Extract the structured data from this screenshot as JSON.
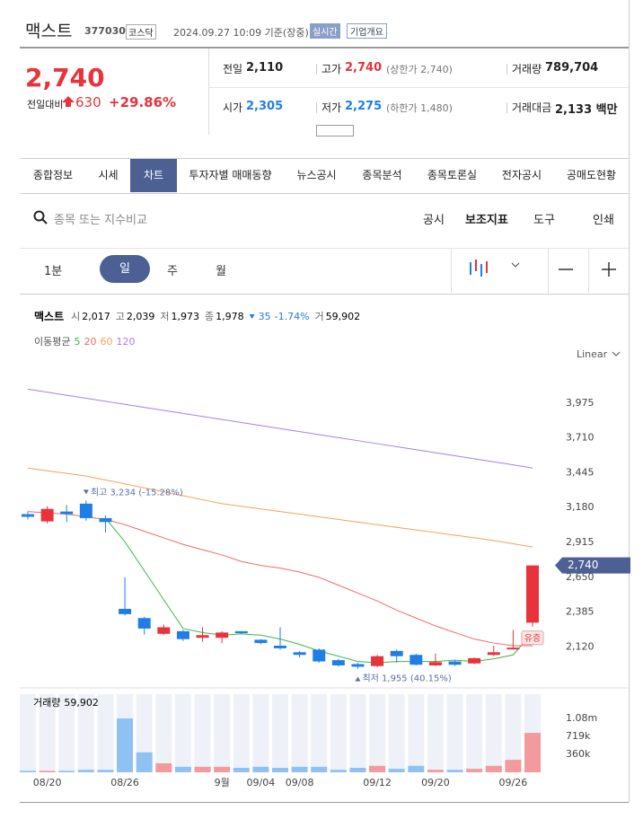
{
  "header": {
    "name": "맥스트",
    "code": "377030",
    "market": "코스닥",
    "datetime": "2024.09.27 10:09 기준(장중)",
    "realtime": "실시간",
    "overview": "기업개요"
  },
  "quote": {
    "price": "2,740",
    "compare_label": "전일대비",
    "change": "630",
    "change_pct": "+29.86%",
    "stats": [
      {
        "label": "전일",
        "value": "2,110"
      },
      {
        "label": "고가",
        "value": "2,740",
        "note": "(상한가 2,740)"
      },
      {
        "label": "거래량",
        "value": "789,704"
      },
      {
        "label": "시가",
        "value": "2,305"
      },
      {
        "label": "저가",
        "value": "2,275",
        "note": "(하한가 1,480)"
      },
      {
        "label": "거래대금",
        "value": "2,133 백만"
      }
    ]
  },
  "tabs": {
    "items": [
      "종합정보",
      "시세",
      "차트",
      "투자자별 매매동향",
      "뉴스공시",
      "종목분석",
      "종목토론실",
      "전자공시",
      "공매도현황"
    ],
    "active": 2
  },
  "toolbar": {
    "search_placeholder": "종목 또는 지수비교",
    "links": [
      "공시",
      "보조지표",
      "도구",
      "인쇄"
    ],
    "periods": [
      "1분",
      "일",
      "주",
      "월"
    ],
    "active_period": 1
  },
  "chart_data": {
    "type": "candlestick",
    "name": "맥스트",
    "info": [
      {
        "label": "시",
        "value": "2,017"
      },
      {
        "label": "고",
        "value": "2,039"
      },
      {
        "label": "저",
        "value": "1,973"
      },
      {
        "label": "종",
        "value": "1,978"
      }
    ],
    "info_change": "35",
    "info_change_pct": "-1.74%",
    "info_volume_label": "거",
    "info_volume": "59,902",
    "ma_label": "이동평균",
    "scale_label": "Linear",
    "categories": [
      null,
      "08/20",
      null,
      null,
      null,
      "08/26",
      null,
      null,
      null,
      null,
      "9월",
      null,
      "09/04",
      null,
      "09/08",
      null,
      null,
      null,
      "09/12",
      null,
      null,
      "09/20",
      null,
      null,
      null,
      "09/26",
      null
    ],
    "open": [
      3130,
      3075,
      3150,
      3210,
      3100,
      2410,
      2340,
      2220,
      2240,
      2190,
      2190,
      2240,
      2175,
      2130,
      2080,
      2100,
      2020,
      1990,
      1975,
      2090,
      2060,
      1980,
      2010,
      1995,
      2060,
      2110,
      2305
    ],
    "high": [
      3150,
      3190,
      3200,
      3234,
      3120,
      2650,
      2350,
      2290,
      2250,
      2270,
      2240,
      2240,
      2180,
      2270,
      2090,
      2110,
      2030,
      2000,
      2060,
      2100,
      2070,
      2070,
      2020,
      2040,
      2130,
      2250,
      2740
    ],
    "low": [
      3090,
      3060,
      3070,
      3080,
      2990,
      2360,
      2215,
      2210,
      2165,
      2160,
      2150,
      2220,
      2140,
      2100,
      2040,
      2000,
      1970,
      1955,
      1965,
      2000,
      1980,
      1975,
      1975,
      1990,
      2050,
      2100,
      2275
    ],
    "close": [
      3110,
      3170,
      3130,
      3100,
      3070,
      2370,
      2260,
      2270,
      2180,
      2210,
      2230,
      2225,
      2150,
      2110,
      2060,
      2010,
      1980,
      1970,
      2050,
      2050,
      1985,
      2005,
      1985,
      2035,
      2080,
      2115,
      2740
    ],
    "up_color": "#e8323c",
    "down_color": "#1f7ee6",
    "ma": [
      {
        "name": "5",
        "color": "#3cb84a",
        "values": [
          null,
          null,
          null,
          null,
          3100,
          2920,
          2700,
          2480,
          2260,
          2230,
          2210,
          2220,
          2210,
          2180,
          2140,
          2090,
          2050,
          2010,
          2000,
          2010,
          2010,
          2010,
          2020,
          2010,
          2030,
          2060,
          2230
        ]
      },
      {
        "name": "20",
        "color": "#f06a6a",
        "values": [
          3150,
          3140,
          3130,
          3110,
          3090,
          3050,
          3000,
          2950,
          2900,
          2860,
          2820,
          2770,
          2740,
          2720,
          2690,
          2650,
          2590,
          2530,
          2470,
          2400,
          2340,
          2280,
          2230,
          2180,
          2150,
          2130,
          2130
        ]
      },
      {
        "name": "60",
        "color": "#f5a15a",
        "values": [
          3480,
          3460,
          3440,
          3420,
          3390,
          3360,
          3330,
          3300,
          3270,
          3240,
          3210,
          3190,
          3170,
          3150,
          3130,
          3110,
          3090,
          3070,
          3050,
          3030,
          3010,
          2990,
          2970,
          2950,
          2930,
          2905,
          2880
        ]
      },
      {
        "name": "120",
        "color": "#a97ee8",
        "values": [
          4080,
          4057,
          4034,
          4011,
          3988,
          3965,
          3942,
          3919,
          3896,
          3873,
          3850,
          3827,
          3804,
          3781,
          3758,
          3735,
          3712,
          3689,
          3666,
          3643,
          3620,
          3597,
          3574,
          3551,
          3528,
          3505,
          3480
        ]
      }
    ],
    "ylim": [
      1850,
      4240
    ],
    "yticks": [
      {
        "value": 3975,
        "label": "3,975"
      },
      {
        "value": 3710,
        "label": "3,710"
      },
      {
        "value": 3445,
        "label": "3,445"
      },
      {
        "value": 3180,
        "label": "3,180"
      },
      {
        "value": 2915,
        "label": "2,915"
      },
      {
        "value": 2650,
        "label": "2,650"
      },
      {
        "value": 2385,
        "label": "2,385"
      },
      {
        "value": 2120,
        "label": "2,120"
      }
    ],
    "high_label": "최고 3,234 (-15.28%)",
    "low_label": "최저 1,955 (40.15%)",
    "last_label": "2,740",
    "badge": "유증",
    "volume": {
      "label": "거래량",
      "value_label": "59,902",
      "values": [
        30000,
        30000,
        30000,
        50000,
        50000,
        1080000,
        400000,
        180000,
        110000,
        110000,
        110000,
        90000,
        110000,
        90000,
        110000,
        110000,
        50000,
        90000,
        130000,
        70000,
        130000,
        50000,
        50000,
        70000,
        130000,
        250000,
        790000
      ],
      "ylim": [
        0,
        1566000
      ],
      "yticks": [
        {
          "value": 1080000,
          "label": "1.08m"
        },
        {
          "value": 719000,
          "label": "719k"
        },
        {
          "value": 360000,
          "label": "360k"
        }
      ]
    }
  }
}
